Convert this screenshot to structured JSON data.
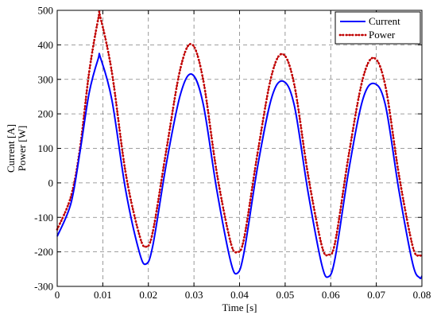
{
  "chart_data": {
    "type": "line",
    "title": "",
    "xlabel": "Time [s]",
    "ylabel_lines": [
      "Current [A]",
      "Power [W]"
    ],
    "xlim": [
      0,
      0.08
    ],
    "ylim": [
      -300,
      500
    ],
    "x_ticks": [
      0,
      0.01,
      0.02,
      0.03,
      0.04,
      0.05,
      0.06,
      0.07,
      0.08
    ],
    "x_tick_labels": [
      "0",
      "0.01",
      "0.02",
      "0.03",
      "0.04",
      "0.05",
      "0.06",
      "0.07",
      "0.08"
    ],
    "y_ticks": [
      -300,
      -200,
      -100,
      0,
      100,
      200,
      300,
      400,
      500
    ],
    "y_tick_labels": [
      "-300",
      "-200",
      "-100",
      "0",
      "100",
      "200",
      "300",
      "400",
      "500"
    ],
    "grid": true,
    "legend_position": "top-right",
    "series": [
      {
        "name": "Current",
        "color": "#0000ff",
        "style": "solid",
        "x": [
          0,
          0.003,
          0.005,
          0.007,
          0.009,
          0.0095,
          0.012,
          0.015,
          0.018,
          0.0195,
          0.021,
          0.024,
          0.027,
          0.0295,
          0.032,
          0.035,
          0.038,
          0.0395,
          0.041,
          0.044,
          0.047,
          0.0495,
          0.052,
          0.055,
          0.058,
          0.0595,
          0.061,
          0.064,
          0.067,
          0.0695,
          0.072,
          0.075,
          0.078,
          0.0795,
          0.08
        ],
        "y": [
          -155,
          -60,
          90,
          260,
          360,
          362,
          240,
          -20,
          -200,
          -235,
          -180,
          60,
          255,
          315,
          230,
          -20,
          -225,
          -262,
          -200,
          50,
          245,
          295,
          225,
          -25,
          -235,
          -272,
          -215,
          40,
          240,
          288,
          225,
          -25,
          -235,
          -275,
          -270
        ]
      },
      {
        "name": "Power",
        "color": "#c00000",
        "style": "dashed-markers",
        "x": [
          0,
          0.003,
          0.005,
          0.007,
          0.009,
          0.0095,
          0.012,
          0.015,
          0.018,
          0.0195,
          0.021,
          0.024,
          0.027,
          0.0295,
          0.032,
          0.035,
          0.038,
          0.0395,
          0.041,
          0.044,
          0.047,
          0.0495,
          0.052,
          0.055,
          0.058,
          0.0595,
          0.061,
          0.064,
          0.067,
          0.0695,
          0.072,
          0.075,
          0.078,
          0.0795,
          0.08
        ],
        "y": [
          -135,
          -40,
          100,
          320,
          475,
          478,
          320,
          30,
          -150,
          -185,
          -140,
          100,
          330,
          402,
          300,
          30,
          -170,
          -200,
          -160,
          90,
          310,
          373,
          285,
          25,
          -180,
          -208,
          -170,
          85,
          300,
          362,
          280,
          20,
          -185,
          -210,
          -205
        ]
      }
    ]
  }
}
